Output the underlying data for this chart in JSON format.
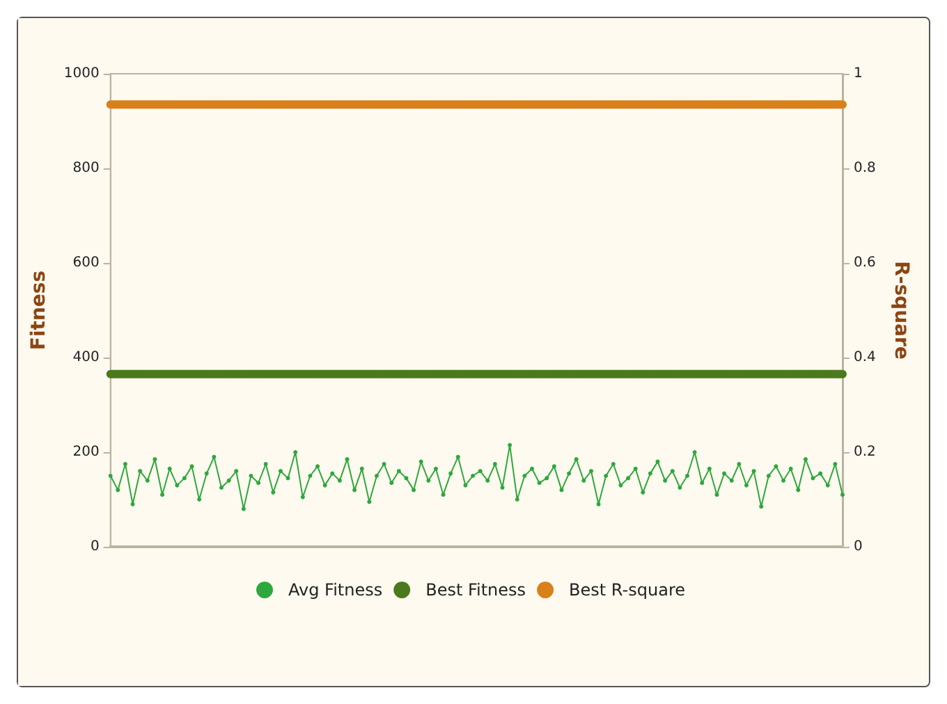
{
  "chart_data": {
    "type": "line",
    "xlabel": null,
    "ylabel": "Fitness",
    "y2label": "R-square",
    "categories": [
      null,
      null,
      null,
      null,
      null,
      null,
      null,
      null,
      null,
      null,
      null,
      null,
      null,
      null,
      null,
      null,
      null,
      null,
      null,
      null,
      null,
      null,
      null,
      null,
      null,
      null,
      null,
      null,
      null,
      null,
      null,
      null,
      null,
      null,
      null,
      null,
      null,
      null,
      null,
      null,
      null,
      null,
      null,
      null,
      null,
      null,
      null,
      null,
      null,
      null,
      null,
      null,
      null,
      null,
      null,
      null,
      null,
      null,
      null,
      null,
      null,
      null,
      null,
      null,
      null,
      null,
      null,
      null,
      null,
      null,
      null,
      null,
      null,
      null,
      null,
      null,
      null,
      null,
      null,
      null,
      null,
      null,
      null,
      null,
      null,
      null,
      null,
      null,
      null,
      null,
      null,
      null,
      null,
      null,
      null,
      null,
      null,
      null,
      null,
      null
    ],
    "series": [
      {
        "name": "Avg Fitness",
        "color": "#2ea83c",
        "values": [
          150,
          120,
          175,
          90,
          160,
          140,
          185,
          110,
          165,
          130,
          145,
          170,
          100,
          155,
          190,
          125,
          140,
          160,
          80,
          150,
          135,
          175,
          115,
          160,
          145,
          200,
          105,
          150,
          170,
          130,
          155,
          140,
          185,
          120,
          165,
          95,
          150,
          175,
          135,
          160,
          145,
          120,
          180,
          140,
          165,
          110,
          155,
          190,
          130,
          150,
          160,
          140,
          175,
          125,
          215,
          100,
          150,
          165,
          135,
          145,
          170,
          120,
          155,
          185,
          140,
          160,
          90,
          150,
          175,
          130,
          145,
          165,
          115,
          155,
          180,
          140,
          160,
          125,
          150,
          200,
          135,
          165,
          110,
          155,
          140,
          175,
          130,
          160,
          85,
          150,
          170,
          140,
          165,
          120,
          185,
          145,
          155,
          130,
          175,
          110
        ]
      },
      {
        "name": "Best Fitness",
        "color": "#4b7a1c",
        "values": [
          365,
          365,
          365,
          365,
          365,
          365,
          365,
          365,
          365,
          365,
          365,
          365,
          365,
          365,
          365,
          365,
          365,
          365,
          365,
          365,
          365,
          365,
          365,
          365,
          365,
          365,
          365,
          365,
          365,
          365,
          365,
          365,
          365,
          365,
          365,
          365,
          365,
          365,
          365,
          365,
          365,
          365,
          365,
          365,
          365,
          365,
          365,
          365,
          365,
          365,
          365,
          365,
          365,
          365,
          365,
          365,
          365,
          365,
          365,
          365,
          365,
          365,
          365,
          365,
          365,
          365,
          365,
          365,
          365,
          365,
          365,
          365,
          365,
          365,
          365,
          365,
          365,
          365,
          365,
          365,
          365,
          365,
          365,
          365,
          365,
          365,
          365,
          365,
          365,
          365,
          365,
          365,
          365,
          365,
          365,
          365,
          365,
          365,
          365,
          365
        ]
      },
      {
        "name": "Best R-square",
        "color": "#d9801a",
        "axis": "y2",
        "values": [
          0.935,
          0.935,
          0.935,
          0.935,
          0.935,
          0.935,
          0.935,
          0.935,
          0.935,
          0.935,
          0.935,
          0.935,
          0.935,
          0.935,
          0.935,
          0.935,
          0.935,
          0.935,
          0.935,
          0.935,
          0.935,
          0.935,
          0.935,
          0.935,
          0.935,
          0.935,
          0.935,
          0.935,
          0.935,
          0.935,
          0.935,
          0.935,
          0.935,
          0.935,
          0.935,
          0.935,
          0.935,
          0.935,
          0.935,
          0.935,
          0.935,
          0.935,
          0.935,
          0.935,
          0.935,
          0.935,
          0.935,
          0.935,
          0.935,
          0.935,
          0.935,
          0.935,
          0.935,
          0.935,
          0.935,
          0.935,
          0.935,
          0.935,
          0.935,
          0.935,
          0.935,
          0.935,
          0.935,
          0.935,
          0.935,
          0.935,
          0.935,
          0.935,
          0.935,
          0.935,
          0.935,
          0.935,
          0.935,
          0.935,
          0.935,
          0.935,
          0.935,
          0.935,
          0.935,
          0.935,
          0.935,
          0.935,
          0.935,
          0.935,
          0.935,
          0.935,
          0.935,
          0.935,
          0.935,
          0.935,
          0.935,
          0.935,
          0.935,
          0.935,
          0.935,
          0.935,
          0.935,
          0.935,
          0.935,
          0.935
        ]
      }
    ],
    "ylim": [
      0,
      1000
    ],
    "yticks": [
      0,
      200,
      400,
      600,
      800,
      1000
    ],
    "y2lim": [
      0,
      1
    ],
    "y2ticks": [
      0,
      0.2,
      0.4,
      0.6,
      0.8,
      1
    ],
    "tick_labels": "y",
    "grid": false,
    "legend": "bottom",
    "marker": "circle",
    "line_style": "solid"
  }
}
